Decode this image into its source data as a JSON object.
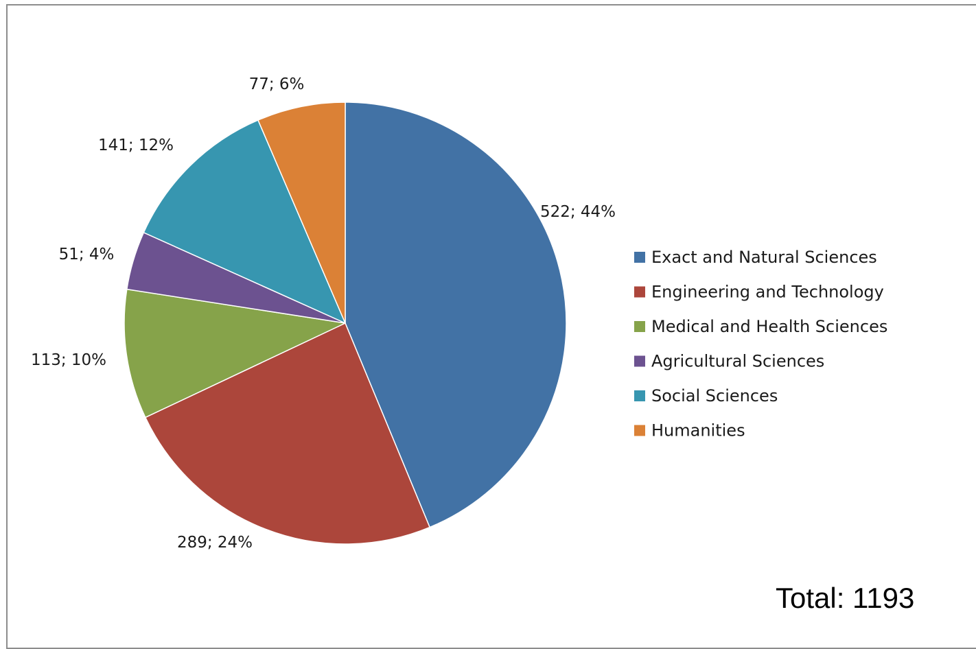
{
  "chart_data": {
    "type": "pie",
    "title": "",
    "categories": [
      "Exact and Natural Sciences",
      "Engineering and Technology",
      "Medical and Health Sciences",
      "Agricultural Sciences",
      "Social Sciences",
      "Humanities"
    ],
    "values": [
      522,
      289,
      113,
      51,
      141,
      77
    ],
    "data_labels": [
      "522; 44%",
      "289; 24%",
      "113; 10%",
      "51; 4%",
      "141; 12%",
      "77; 6%"
    ],
    "colors": [
      "#4272a5",
      "#ac463b",
      "#86a34a",
      "#6c5290",
      "#3796b0",
      "#db8136"
    ],
    "start_angle_deg": 0,
    "direction": "clockwise",
    "legend_position": "right",
    "grid": false
  },
  "annotation": {
    "total_text": "Total: 1193"
  }
}
